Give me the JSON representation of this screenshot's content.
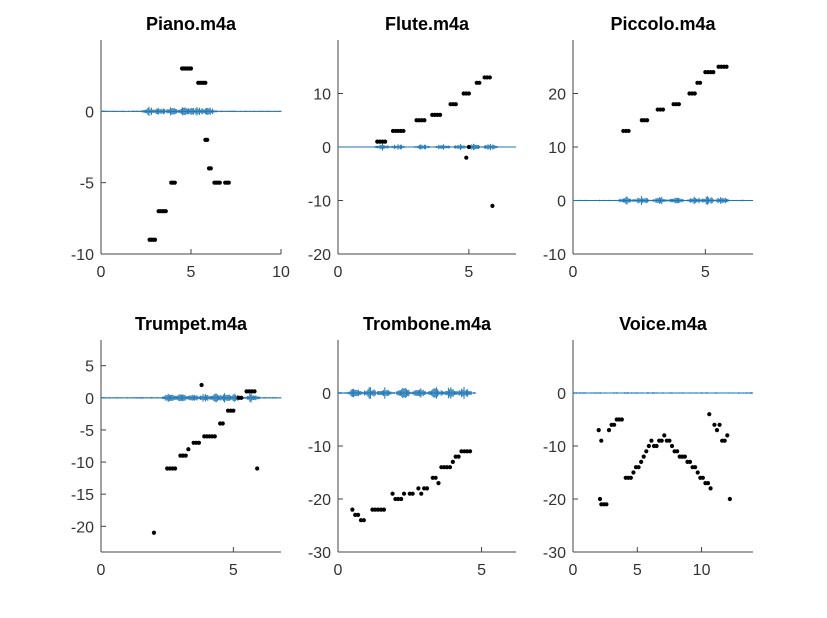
{
  "chart_data": [
    {
      "type": "scatter",
      "title": "Piano.m4a",
      "xlim": [
        0,
        10
      ],
      "ylim": [
        -10,
        5
      ],
      "xticks": [
        0,
        5,
        10
      ],
      "xtick_labels": [
        "0",
        "5",
        "10"
      ],
      "yticks": [
        -10,
        -5,
        0
      ],
      "ytick_labels": [
        "-10",
        "-5",
        "0"
      ],
      "waveform": {
        "color": "#1f77b4",
        "x_range": [
          0,
          10
        ],
        "y": 0,
        "amplitude": 0.35,
        "bursts": [
          2.7,
          3.3,
          3.9,
          4.6,
          5.0,
          5.4,
          6.0
        ]
      },
      "series": [
        {
          "color": "#000000",
          "points": [
            [
              2.7,
              -9
            ],
            [
              2.8,
              -9
            ],
            [
              2.9,
              -9
            ],
            [
              3.0,
              -9
            ],
            [
              3.2,
              -7
            ],
            [
              3.3,
              -7
            ],
            [
              3.4,
              -7
            ],
            [
              3.5,
              -7
            ],
            [
              3.6,
              -7
            ],
            [
              3.9,
              -5
            ],
            [
              4.0,
              -5
            ],
            [
              4.1,
              -5
            ],
            [
              4.5,
              3
            ],
            [
              4.6,
              3
            ],
            [
              4.7,
              3
            ],
            [
              4.8,
              3
            ],
            [
              4.9,
              3
            ],
            [
              5.0,
              3
            ],
            [
              5.4,
              2
            ],
            [
              5.5,
              2
            ],
            [
              5.6,
              2
            ],
            [
              5.7,
              2
            ],
            [
              5.8,
              2
            ],
            [
              5.8,
              -2
            ],
            [
              5.9,
              -2
            ],
            [
              6.0,
              -4
            ],
            [
              6.1,
              -4
            ],
            [
              6.3,
              -5
            ],
            [
              6.4,
              -5
            ],
            [
              6.5,
              -5
            ],
            [
              6.6,
              -5
            ],
            [
              6.9,
              -5
            ],
            [
              7.0,
              -5
            ],
            [
              7.1,
              -5
            ]
          ]
        }
      ]
    },
    {
      "type": "scatter",
      "title": "Flute.m4a",
      "xlim": [
        0,
        6.8
      ],
      "ylim": [
        -20,
        20
      ],
      "xticks": [
        0,
        5
      ],
      "xtick_labels": [
        "0",
        "5"
      ],
      "yticks": [
        -20,
        -10,
        0,
        10
      ],
      "ytick_labels": [
        "-20",
        "-10",
        "0",
        "10"
      ],
      "waveform": {
        "color": "#1f77b4",
        "x_range": [
          0,
          6.8
        ],
        "y": 0,
        "amplitude": 0.7,
        "bursts": [
          1.7,
          2.3,
          3.2,
          4.0,
          4.7,
          5.2,
          5.8
        ]
      },
      "series": [
        {
          "color": "#000000",
          "points": [
            [
              1.5,
              1
            ],
            [
              1.6,
              1
            ],
            [
              1.7,
              1
            ],
            [
              1.8,
              1
            ],
            [
              2.1,
              3
            ],
            [
              2.2,
              3
            ],
            [
              2.3,
              3
            ],
            [
              2.4,
              3
            ],
            [
              2.5,
              3
            ],
            [
              3.0,
              5
            ],
            [
              3.1,
              5
            ],
            [
              3.2,
              5
            ],
            [
              3.3,
              5
            ],
            [
              3.6,
              6
            ],
            [
              3.7,
              6
            ],
            [
              3.8,
              6
            ],
            [
              3.9,
              6
            ],
            [
              4.3,
              8
            ],
            [
              4.4,
              8
            ],
            [
              4.5,
              8
            ],
            [
              4.8,
              10
            ],
            [
              4.9,
              10
            ],
            [
              5.0,
              10
            ],
            [
              5.3,
              12
            ],
            [
              5.4,
              12
            ],
            [
              5.6,
              13
            ],
            [
              5.7,
              13
            ],
            [
              5.8,
              13
            ],
            [
              5.0,
              0
            ],
            [
              4.9,
              -2
            ],
            [
              5.9,
              -11
            ]
          ]
        }
      ]
    },
    {
      "type": "scatter",
      "title": "Piccolo.m4a",
      "xlim": [
        0,
        6.8
      ],
      "ylim": [
        -10,
        30
      ],
      "xticks": [
        0,
        5
      ],
      "xtick_labels": [
        "0",
        "5"
      ],
      "yticks": [
        -10,
        0,
        10,
        20
      ],
      "ytick_labels": [
        "-10",
        "0",
        "10",
        "20"
      ],
      "waveform": {
        "color": "#1f77b4",
        "x_range": [
          0,
          6.8
        ],
        "y": 0,
        "amplitude": 0.9,
        "bursts": [
          2.0,
          2.6,
          3.3,
          3.9,
          4.6,
          5.1,
          5.6
        ]
      },
      "series": [
        {
          "color": "#000000",
          "points": [
            [
              1.9,
              13
            ],
            [
              2.0,
              13
            ],
            [
              2.1,
              13
            ],
            [
              2.6,
              15
            ],
            [
              2.7,
              15
            ],
            [
              2.8,
              15
            ],
            [
              3.2,
              17
            ],
            [
              3.3,
              17
            ],
            [
              3.4,
              17
            ],
            [
              3.8,
              18
            ],
            [
              3.9,
              18
            ],
            [
              4.0,
              18
            ],
            [
              4.4,
              20
            ],
            [
              4.5,
              20
            ],
            [
              4.6,
              20
            ],
            [
              4.7,
              22
            ],
            [
              4.8,
              22
            ],
            [
              5.0,
              24
            ],
            [
              5.1,
              24
            ],
            [
              5.2,
              24
            ],
            [
              5.3,
              24
            ],
            [
              5.5,
              25
            ],
            [
              5.6,
              25
            ],
            [
              5.7,
              25
            ],
            [
              5.8,
              25
            ]
          ]
        }
      ]
    },
    {
      "type": "scatter",
      "title": "Trumpet.m4a",
      "xlim": [
        0,
        6.8
      ],
      "ylim": [
        -24,
        9
      ],
      "xticks": [
        0,
        5
      ],
      "xtick_labels": [
        "0",
        "5"
      ],
      "yticks": [
        -20,
        -15,
        -10,
        -5,
        0,
        5
      ],
      "ytick_labels": [
        "-20",
        "-15",
        "-10",
        "-5",
        "0",
        "5"
      ],
      "waveform": {
        "color": "#1f77b4",
        "x_range": [
          0,
          6.8
        ],
        "y": 0,
        "amplitude": 0.8,
        "bursts": [
          2.6,
          3.0,
          3.5,
          3.9,
          4.3,
          4.7,
          5.1,
          5.7
        ]
      },
      "series": [
        {
          "color": "#000000",
          "points": [
            [
              2.0,
              -21
            ],
            [
              2.5,
              -11
            ],
            [
              2.6,
              -11
            ],
            [
              2.7,
              -11
            ],
            [
              2.8,
              -11
            ],
            [
              3.0,
              -9
            ],
            [
              3.1,
              -9
            ],
            [
              3.2,
              -9
            ],
            [
              3.3,
              -8
            ],
            [
              3.5,
              -7
            ],
            [
              3.6,
              -7
            ],
            [
              3.7,
              -7
            ],
            [
              3.9,
              -6
            ],
            [
              4.0,
              -6
            ],
            [
              4.1,
              -6
            ],
            [
              4.2,
              -6
            ],
            [
              4.3,
              -6
            ],
            [
              4.5,
              -4
            ],
            [
              4.6,
              -4
            ],
            [
              4.8,
              -2
            ],
            [
              4.9,
              -2
            ],
            [
              5.0,
              -2
            ],
            [
              5.2,
              0
            ],
            [
              5.3,
              0
            ],
            [
              5.5,
              1
            ],
            [
              5.6,
              1
            ],
            [
              5.7,
              1
            ],
            [
              5.8,
              1
            ],
            [
              3.8,
              2
            ],
            [
              5.9,
              -11
            ]
          ]
        }
      ]
    },
    {
      "type": "scatter",
      "title": "Trombone.m4a",
      "xlim": [
        0,
        6.2
      ],
      "ylim": [
        -30,
        10
      ],
      "xticks": [
        0,
        5
      ],
      "xtick_labels": [
        "0",
        "5"
      ],
      "yticks": [
        -30,
        -20,
        -10,
        0
      ],
      "ytick_labels": [
        "-30",
        "-20",
        "-10",
        "0"
      ],
      "waveform": {
        "color": "#1f77b4",
        "x_range": [
          0,
          4.8
        ],
        "y": 0,
        "amplitude": 1.2,
        "bursts": [
          0.6,
          1.1,
          1.6,
          2.3,
          2.8,
          3.4,
          3.9,
          4.4
        ]
      },
      "series": [
        {
          "color": "#000000",
          "points": [
            [
              0.5,
              -22
            ],
            [
              0.6,
              -23
            ],
            [
              0.7,
              -23
            ],
            [
              0.8,
              -24
            ],
            [
              0.9,
              -24
            ],
            [
              1.2,
              -22
            ],
            [
              1.3,
              -22
            ],
            [
              1.4,
              -22
            ],
            [
              1.5,
              -22
            ],
            [
              1.6,
              -22
            ],
            [
              1.9,
              -19
            ],
            [
              2.0,
              -20
            ],
            [
              2.1,
              -20
            ],
            [
              2.2,
              -20
            ],
            [
              2.3,
              -19
            ],
            [
              2.5,
              -19
            ],
            [
              2.6,
              -19
            ],
            [
              2.8,
              -18
            ],
            [
              2.9,
              -19
            ],
            [
              3.0,
              -18
            ],
            [
              3.1,
              -18
            ],
            [
              3.3,
              -16
            ],
            [
              3.4,
              -16
            ],
            [
              3.5,
              -17
            ],
            [
              3.6,
              -14
            ],
            [
              3.7,
              -14
            ],
            [
              3.8,
              -14
            ],
            [
              3.9,
              -14
            ],
            [
              4.0,
              -13
            ],
            [
              4.1,
              -12
            ],
            [
              4.2,
              -12
            ],
            [
              4.3,
              -11
            ],
            [
              4.4,
              -11
            ],
            [
              4.5,
              -11
            ],
            [
              4.6,
              -11
            ]
          ]
        }
      ]
    },
    {
      "type": "scatter",
      "title": "Voice.m4a",
      "xlim": [
        0,
        14
      ],
      "ylim": [
        -30,
        10
      ],
      "xticks": [
        0,
        5,
        10
      ],
      "xtick_labels": [
        "0",
        "5",
        "10"
      ],
      "yticks": [
        -30,
        -20,
        -10,
        0
      ],
      "ytick_labels": [
        "-30",
        "-20",
        "-10",
        "0"
      ],
      "waveform": {
        "color": "#1f77b4",
        "x_range": [
          0,
          14
        ],
        "y": 0,
        "amplitude": 0.4,
        "bursts": []
      },
      "series": [
        {
          "color": "#000000",
          "points": [
            [
              2.0,
              -7
            ],
            [
              2.2,
              -9
            ],
            [
              2.1,
              -20
            ],
            [
              2.2,
              -21
            ],
            [
              2.4,
              -21
            ],
            [
              2.6,
              -21
            ],
            [
              2.8,
              -7
            ],
            [
              3.0,
              -6
            ],
            [
              3.2,
              -6
            ],
            [
              3.4,
              -5
            ],
            [
              3.6,
              -5
            ],
            [
              3.8,
              -5
            ],
            [
              4.1,
              -16
            ],
            [
              4.3,
              -16
            ],
            [
              4.5,
              -16
            ],
            [
              4.7,
              -15
            ],
            [
              4.9,
              -14
            ],
            [
              5.1,
              -14
            ],
            [
              5.3,
              -13
            ],
            [
              5.5,
              -12
            ],
            [
              5.7,
              -11
            ],
            [
              5.9,
              -10
            ],
            [
              6.1,
              -9
            ],
            [
              6.3,
              -10
            ],
            [
              6.5,
              -10
            ],
            [
              6.7,
              -9
            ],
            [
              6.9,
              -9
            ],
            [
              7.1,
              -8
            ],
            [
              7.3,
              -9
            ],
            [
              7.5,
              -9
            ],
            [
              7.7,
              -10
            ],
            [
              7.9,
              -11
            ],
            [
              8.1,
              -11
            ],
            [
              8.3,
              -12
            ],
            [
              8.5,
              -12
            ],
            [
              8.7,
              -12
            ],
            [
              8.9,
              -13
            ],
            [
              9.1,
              -13
            ],
            [
              9.3,
              -14
            ],
            [
              9.5,
              -14
            ],
            [
              9.7,
              -15
            ],
            [
              9.9,
              -16
            ],
            [
              10.1,
              -16
            ],
            [
              10.3,
              -17
            ],
            [
              10.5,
              -17
            ],
            [
              10.7,
              -18
            ],
            [
              10.6,
              -4
            ],
            [
              11.0,
              -6
            ],
            [
              11.2,
              -7
            ],
            [
              11.4,
              -6
            ],
            [
              11.6,
              -9
            ],
            [
              11.8,
              -9
            ],
            [
              12.0,
              -8
            ],
            [
              12.2,
              -20
            ]
          ]
        }
      ]
    }
  ]
}
